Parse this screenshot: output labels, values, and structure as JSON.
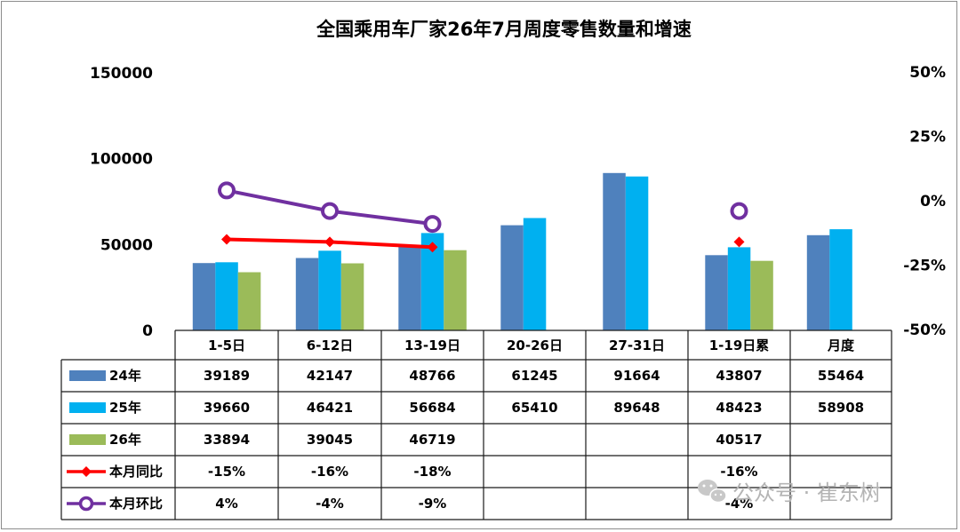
{
  "chart_data": {
    "type": "bar",
    "title": "全国乘用车厂家26年7月周度零售数量和增速",
    "categories": [
      "1-5日",
      "6-12日",
      "13-19日",
      "20-26日",
      "27-31日",
      "1-19日累",
      "月度"
    ],
    "ylim": [
      0,
      150000
    ],
    "y_ticks": [
      "0",
      "50000",
      "100000",
      "150000"
    ],
    "y2lim": [
      -50,
      50
    ],
    "y2_ticks": [
      "-50%",
      "-25%",
      "0%",
      "25%",
      "50%"
    ],
    "grid": false,
    "legend": "table-left",
    "series": [
      {
        "name": "24年",
        "kind": "bar",
        "color": "#4f81bd",
        "values": [
          39189,
          42147,
          48766,
          61245,
          91664,
          43807,
          55464
        ]
      },
      {
        "name": "25年",
        "kind": "bar",
        "color": "#00b0f0",
        "values": [
          39660,
          46421,
          56684,
          65410,
          89648,
          48423,
          58908
        ]
      },
      {
        "name": "26年",
        "kind": "bar",
        "color": "#9bbb59",
        "values": [
          33894,
          39045,
          46719,
          null,
          null,
          40517,
          null
        ]
      },
      {
        "name": "本月同比",
        "kind": "line",
        "axis": "right",
        "color": "#ff0000",
        "marker": "diamond",
        "values": [
          -15,
          -16,
          -18,
          null,
          null,
          -16,
          null
        ],
        "labels": [
          "-15%",
          "-16%",
          "-18%",
          "",
          "",
          "-16%",
          ""
        ]
      },
      {
        "name": "本月环比",
        "kind": "line",
        "axis": "right",
        "color": "#7030a0",
        "marker": "circle",
        "values": [
          4,
          -4,
          -9,
          null,
          null,
          -4,
          null
        ],
        "labels": [
          "4%",
          "-4%",
          "-9%",
          "",
          "",
          "-4%",
          ""
        ]
      }
    ]
  },
  "watermark": "公众号 · 崔东树"
}
